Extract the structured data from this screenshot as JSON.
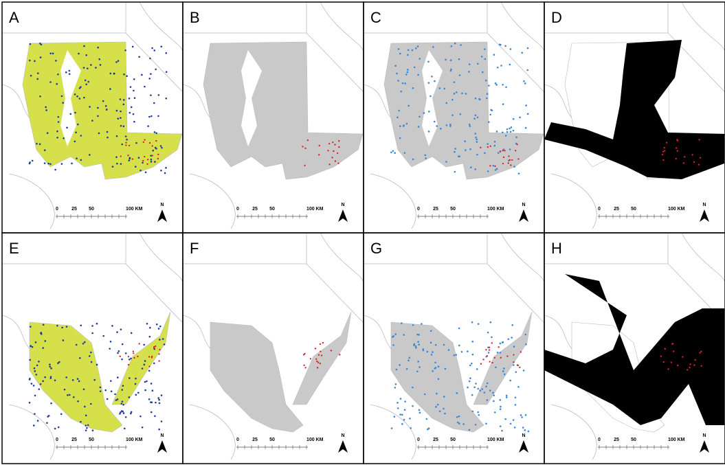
{
  "panels": [
    {
      "label": "A",
      "scale_labels": [
        "0",
        "25",
        "50",
        "100 KM"
      ],
      "north": "N"
    },
    {
      "label": "B",
      "scale_labels": [
        "0",
        "25",
        "50",
        "100 KM"
      ],
      "north": "N"
    },
    {
      "label": "C",
      "scale_labels": [
        "0",
        "25",
        "50",
        "100 KM"
      ],
      "north": "N"
    },
    {
      "label": "D",
      "scale_labels": [
        "0",
        "25",
        "50",
        "100 KM"
      ],
      "north": "N"
    },
    {
      "label": "E",
      "scale_labels": [
        "0",
        "25",
        "50",
        "100 KM"
      ],
      "north": "N"
    },
    {
      "label": "F",
      "scale_labels": [
        "0",
        "25",
        "50",
        "100 KM"
      ],
      "north": "N"
    },
    {
      "label": "G",
      "scale_labels": [
        "0",
        "25",
        "50",
        "100 KM"
      ],
      "north": "N"
    },
    {
      "label": "H",
      "scale_labels": [
        "0",
        "25",
        "50",
        "100 KM"
      ],
      "north": "N"
    }
  ]
}
